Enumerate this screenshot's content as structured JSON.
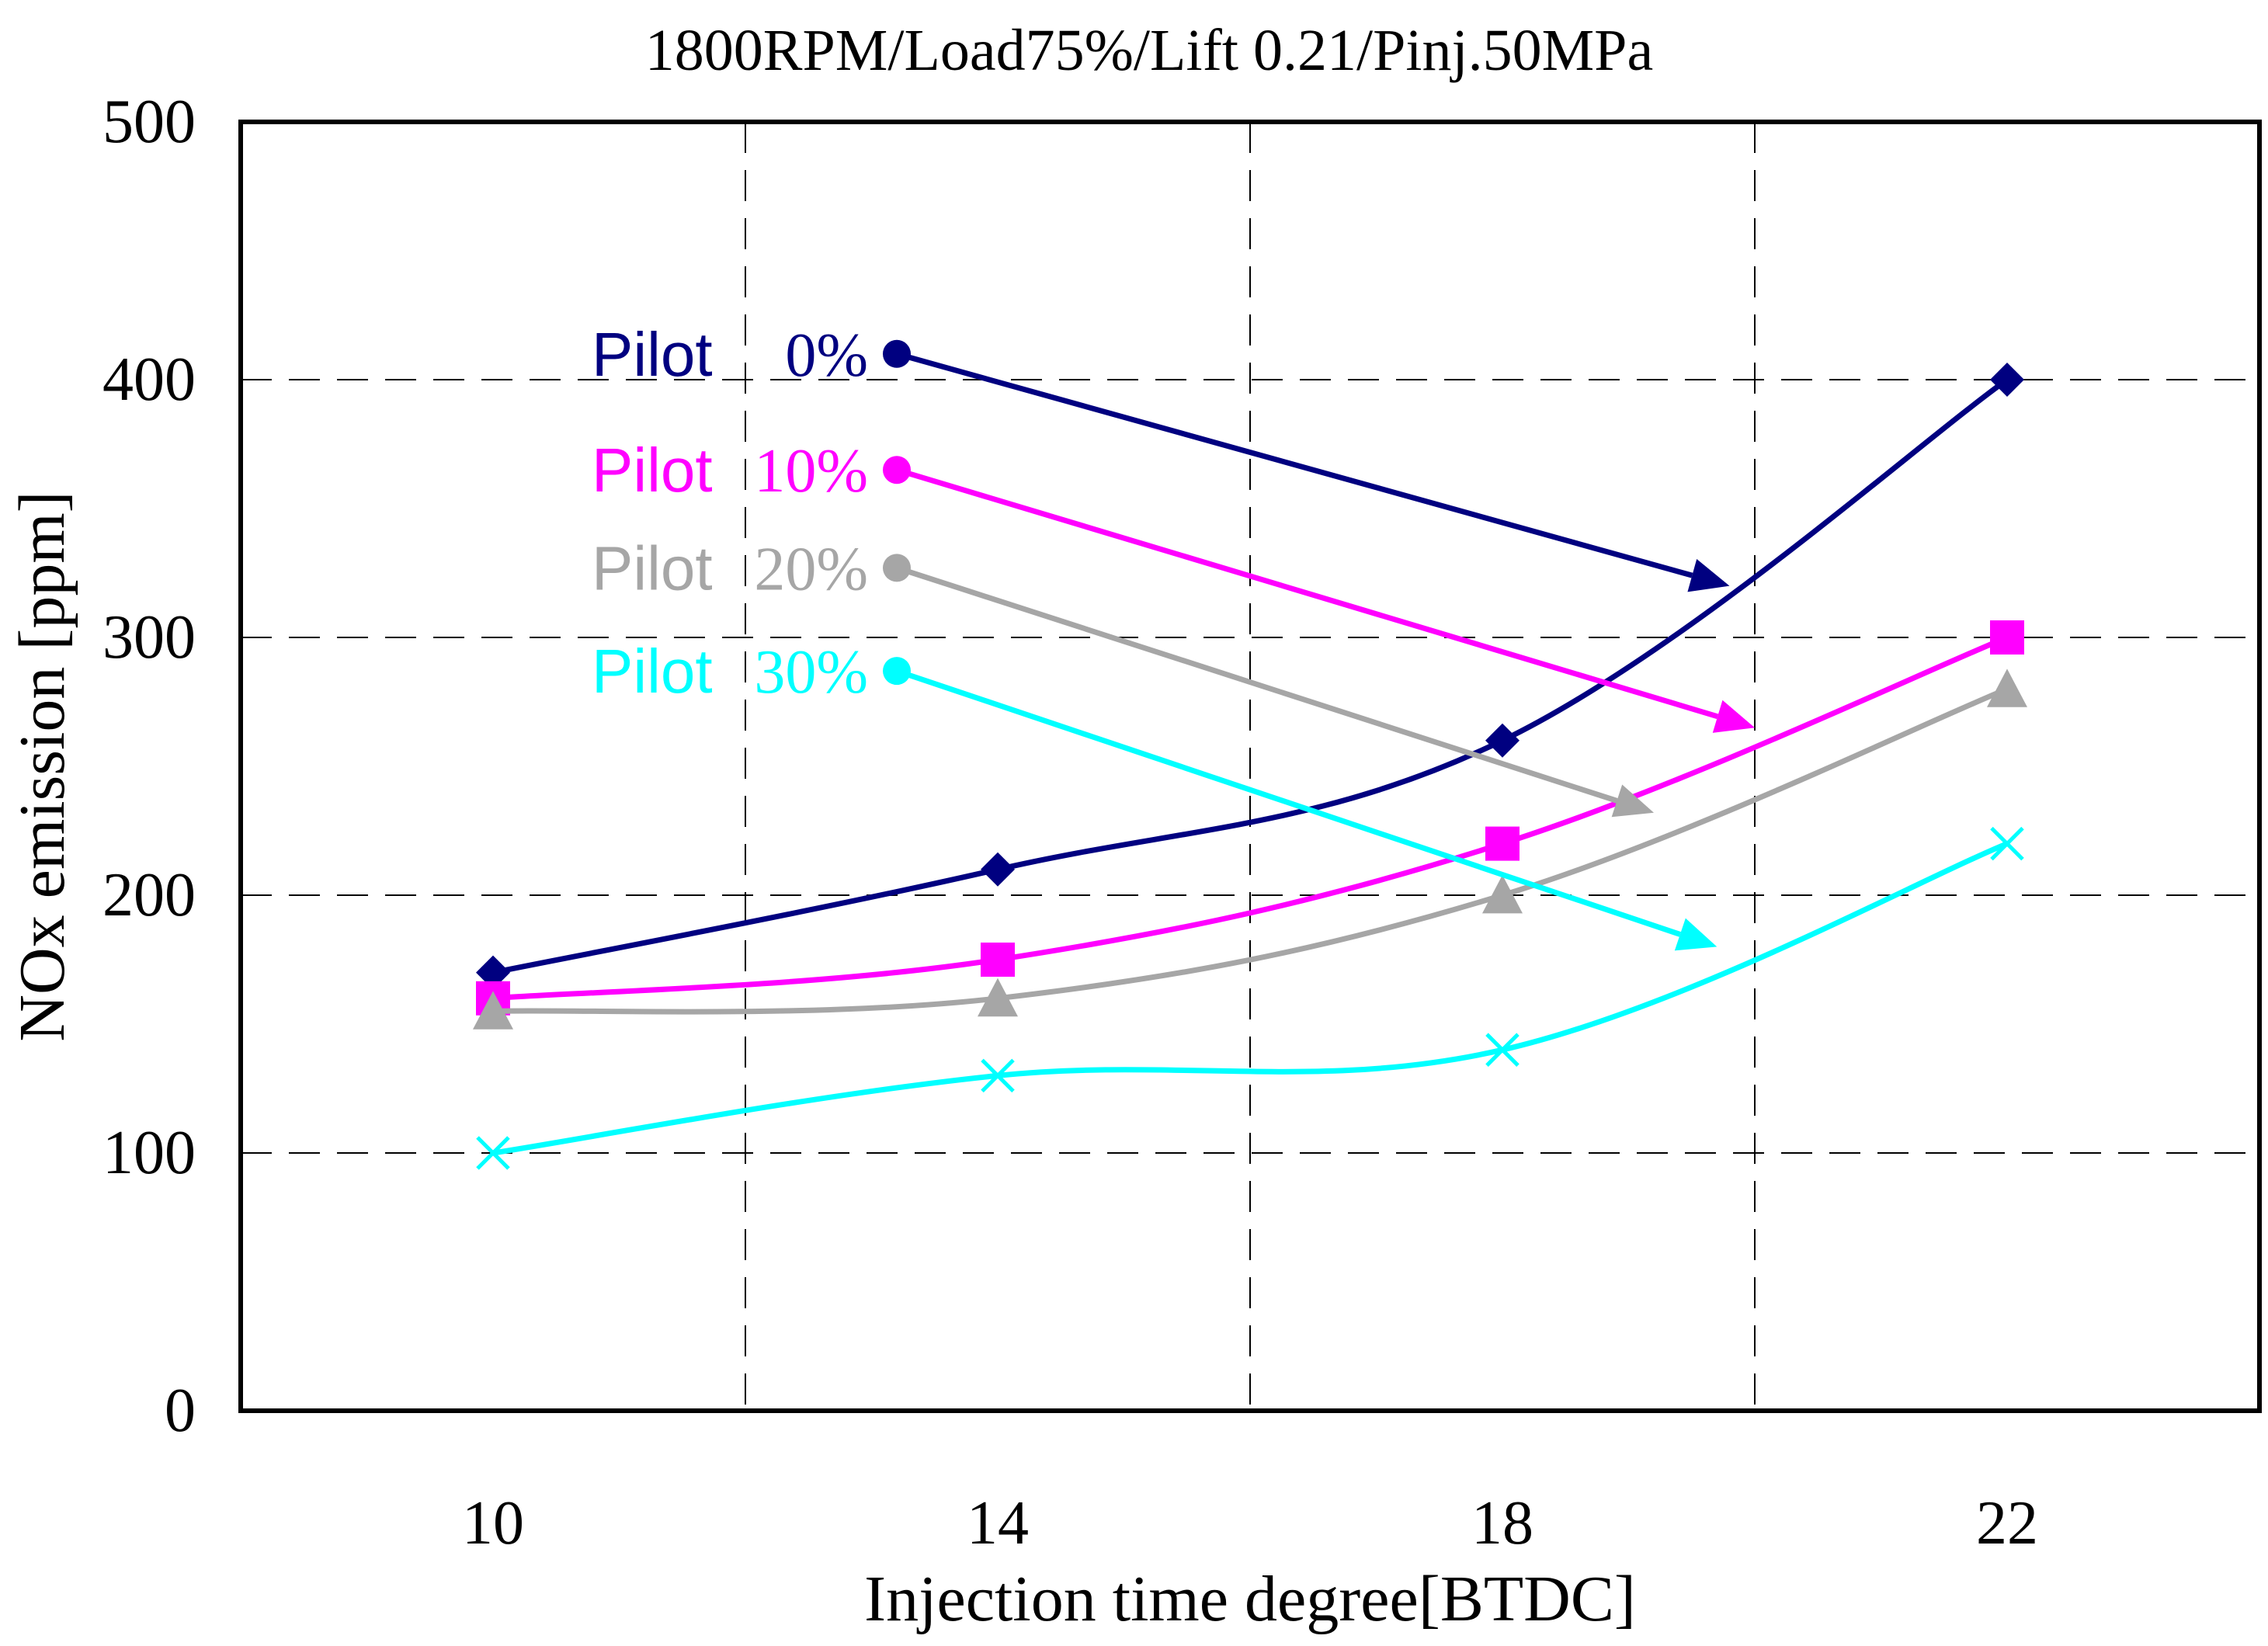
{
  "chart_data": {
    "type": "line",
    "title": "1800RPM/Load75%/Lift 0.21/Pinj.50MPa",
    "xlabel": "Injection time degree[BTDC]",
    "ylabel": "NOx emission [ppm]",
    "xlim": [
      8,
      24
    ],
    "ylim": [
      0,
      500
    ],
    "x_ticks": [
      10,
      14,
      18,
      22
    ],
    "y_ticks": [
      0,
      100,
      200,
      300,
      400,
      500
    ],
    "x_grid": [
      12,
      16,
      20
    ],
    "grid": true,
    "series": [
      {
        "name": "Pilot 0%",
        "label_word": "Pilot",
        "label_pct": "0%",
        "color": "#000080",
        "marker": "diamond",
        "x": [
          10,
          14,
          18,
          22
        ],
        "values": [
          170,
          210,
          260,
          400
        ]
      },
      {
        "name": "Pilot 10%",
        "label_word": "Pilot",
        "label_pct": "10%",
        "color": "#ff00ff",
        "marker": "square",
        "x": [
          10,
          14,
          18,
          22
        ],
        "values": [
          160,
          175,
          220,
          300
        ]
      },
      {
        "name": "Pilot 20%",
        "label_word": "Pilot",
        "label_pct": "20%",
        "color": "#a6a6a6",
        "marker": "triangle",
        "x": [
          10,
          14,
          18,
          22
        ],
        "values": [
          155,
          160,
          200,
          280
        ]
      },
      {
        "name": "Pilot 30%",
        "label_word": "Pilot",
        "label_pct": "30%",
        "color": "#00ffff",
        "marker": "x",
        "x": [
          10,
          14,
          18,
          22
        ],
        "values": [
          100,
          130,
          140,
          220
        ]
      }
    ],
    "annotations": [
      {
        "series": "Pilot 0%",
        "from": [
          13.2,
          410
        ],
        "to": [
          19.8,
          320
        ]
      },
      {
        "series": "Pilot 10%",
        "from": [
          13.2,
          365
        ],
        "to": [
          20.0,
          265
        ]
      },
      {
        "series": "Pilot 20%",
        "from": [
          13.2,
          327
        ],
        "to": [
          19.2,
          232
        ]
      },
      {
        "series": "Pilot 30%",
        "from": [
          13.2,
          287
        ],
        "to": [
          19.7,
          180
        ]
      }
    ]
  }
}
